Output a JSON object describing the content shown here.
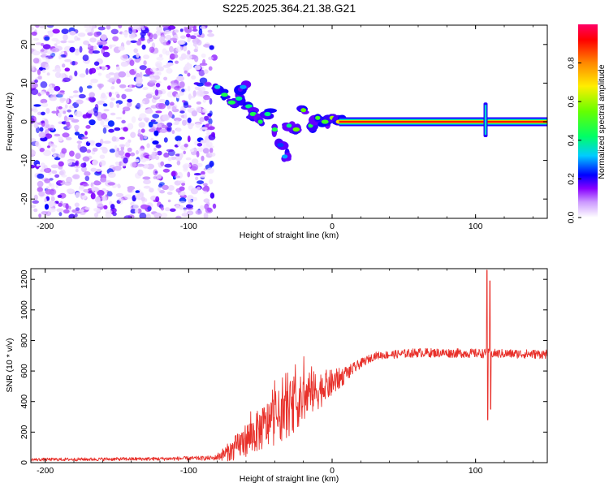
{
  "chart_data": [
    {
      "type": "heatmap",
      "title": "S225.2025.364.21.38.G21",
      "xlabel": "Height of straight line (km)",
      "ylabel": "Frequency (Hz)",
      "xlim": [
        -210,
        150
      ],
      "ylim": [
        -25,
        25
      ],
      "xticks": [
        -200,
        -100,
        0,
        100
      ],
      "yticks": [
        -20,
        -10,
        0,
        10,
        20
      ],
      "colorbar": {
        "label": "Normalized spectral amplitude",
        "range": [
          0,
          1
        ],
        "ticks": [
          "0.0",
          "0.2",
          "0.4",
          "0.6",
          "0.8"
        ],
        "colors": [
          "#ffffff",
          "#cc99ff",
          "#8800ff",
          "#0000ff",
          "#00ccff",
          "#00ff66",
          "#66ff00",
          "#ffee00",
          "#ff8800",
          "#ff0000",
          "#ff0066"
        ]
      },
      "features": {
        "noise_region_km": [
          -210,
          -82
        ],
        "noise_level": 0.12,
        "carrier_line": {
          "start_km": 5,
          "end_km": 150,
          "freq_hz": 0.0,
          "amplitude": 1.0
        },
        "transition_blobs": [
          {
            "km": -80,
            "hz": 9,
            "amp": 0.35
          },
          {
            "km": -75,
            "hz": 7,
            "amp": 0.45
          },
          {
            "km": -70,
            "hz": 5,
            "amp": 0.45
          },
          {
            "km": -65,
            "hz": 6,
            "amp": 0.4
          },
          {
            "km": -62,
            "hz": 9,
            "amp": 0.3
          },
          {
            "km": -58,
            "hz": 4,
            "amp": 0.4
          },
          {
            "km": -55,
            "hz": 2,
            "amp": 0.45
          },
          {
            "km": -50,
            "hz": 0,
            "amp": 0.45
          },
          {
            "km": -45,
            "hz": 2,
            "amp": 0.4
          },
          {
            "km": -40,
            "hz": -2,
            "amp": 0.45
          },
          {
            "km": -36,
            "hz": -6,
            "amp": 0.25
          },
          {
            "km": -33,
            "hz": -9,
            "amp": 0.3
          },
          {
            "km": -30,
            "hz": -1,
            "amp": 0.4
          },
          {
            "km": -25,
            "hz": -2,
            "amp": 0.55
          },
          {
            "km": -20,
            "hz": 3,
            "amp": 0.55
          },
          {
            "km": -15,
            "hz": -1,
            "amp": 0.45
          },
          {
            "km": -10,
            "hz": 1,
            "amp": 0.5
          },
          {
            "km": -5,
            "hz": 0,
            "amp": 0.5
          },
          {
            "km": 0,
            "hz": 1,
            "amp": 0.6
          },
          {
            "km": 5,
            "hz": 0,
            "amp": 0.7
          }
        ],
        "spike": {
          "km": 107,
          "hz_range": [
            -4,
            5
          ],
          "amp": 0.35
        }
      }
    },
    {
      "type": "line",
      "xlabel": "Height of straight line (km)",
      "ylabel": "SNR (10 * v/v)",
      "xlim": [
        -210,
        150
      ],
      "ylim": [
        0,
        1270
      ],
      "xticks": [
        -200,
        -100,
        0,
        100
      ],
      "yticks": [
        0,
        200,
        400,
        600,
        800,
        1000,
        1200
      ],
      "series": [
        {
          "name": "SNR",
          "color": "#e8302a",
          "envelope": [
            {
              "x": -210,
              "mean": 20,
              "noise": 10
            },
            {
              "x": -120,
              "mean": 25,
              "noise": 12
            },
            {
              "x": -82,
              "mean": 30,
              "noise": 15
            },
            {
              "x": -70,
              "mean": 80,
              "noise": 70
            },
            {
              "x": -60,
              "mean": 150,
              "noise": 110
            },
            {
              "x": -45,
              "mean": 250,
              "noise": 160
            },
            {
              "x": -30,
              "mean": 350,
              "noise": 180
            },
            {
              "x": -15,
              "mean": 450,
              "noise": 150
            },
            {
              "x": 0,
              "mean": 520,
              "noise": 90
            },
            {
              "x": 10,
              "mean": 580,
              "noise": 50
            },
            {
              "x": 20,
              "mean": 650,
              "noise": 30
            },
            {
              "x": 30,
              "mean": 700,
              "noise": 25
            },
            {
              "x": 60,
              "mean": 720,
              "noise": 30
            },
            {
              "x": 150,
              "mean": 710,
              "noise": 30
            }
          ],
          "spikes": [
            {
              "x": 108,
              "min": 280,
              "max": 1260
            },
            {
              "x": 110,
              "min": 350,
              "max": 1190
            }
          ]
        }
      ]
    }
  ]
}
